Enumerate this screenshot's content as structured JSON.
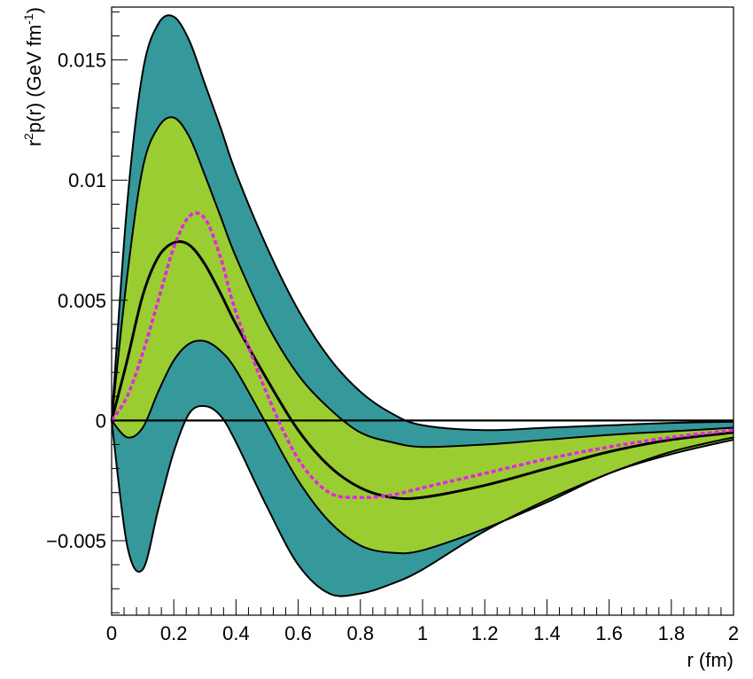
{
  "chart_data": {
    "type": "area",
    "title": "",
    "xlabel": "r (fm)",
    "ylabel": {
      "base": "r",
      "sup": "2",
      "mid": "p(r) (GeV fm",
      "sup2": "-1",
      "end": ")"
    },
    "xlim": [
      0,
      2
    ],
    "ylim": [
      -0.0081,
      0.0172
    ],
    "x_ticks": [
      {
        "value": 0,
        "label": "0"
      },
      {
        "value": 0.2,
        "label": "0.2"
      },
      {
        "value": 0.4,
        "label": "0.4"
      },
      {
        "value": 0.6,
        "label": "0.6"
      },
      {
        "value": 0.8,
        "label": "0.8"
      },
      {
        "value": 1,
        "label": "1"
      },
      {
        "value": 1.2,
        "label": "1.2"
      },
      {
        "value": 1.4,
        "label": "1.4"
      },
      {
        "value": 1.6,
        "label": "1.6"
      },
      {
        "value": 1.8,
        "label": "1.8"
      },
      {
        "value": 2,
        "label": "2"
      }
    ],
    "y_ticks": [
      {
        "value": -0.005,
        "label": "−0.005"
      },
      {
        "value": 0,
        "label": "0"
      },
      {
        "value": 0.005,
        "label": "0.005"
      },
      {
        "value": 0.01,
        "label": "0.01"
      },
      {
        "value": 0.015,
        "label": "0.015"
      }
    ],
    "colors": {
      "outer_band": "#35989a",
      "inner_band": "#9acd32",
      "central": "#000000",
      "dashed": "#e623e6",
      "zero_line": "#000000"
    },
    "x": [
      0,
      0.05,
      0.1,
      0.15,
      0.2,
      0.25,
      0.3,
      0.35,
      0.4,
      0.5,
      0.6,
      0.7,
      0.8,
      0.9,
      1.0,
      1.2,
      1.4,
      1.6,
      1.8,
      2.0
    ],
    "series": [
      {
        "role": "outer_upper",
        "values": [
          0,
          0.009,
          0.0145,
          0.0165,
          0.0168,
          0.0158,
          0.014,
          0.0122,
          0.0103,
          0.0072,
          0.0046,
          0.0026,
          0.0012,
          0.0003,
          -0.0002,
          -0.0004,
          -0.0003,
          -0.0002,
          -0.0001,
          -5e-05
        ]
      },
      {
        "role": "inner_upper",
        "values": [
          0,
          0.006,
          0.0105,
          0.0122,
          0.0126,
          0.0118,
          0.0102,
          0.0085,
          0.0068,
          0.004,
          0.0019,
          0.0005,
          -0.0005,
          -0.0009,
          -0.0011,
          -0.001,
          -0.0008,
          -0.0006,
          -0.00045,
          -0.0003
        ]
      },
      {
        "role": "central",
        "values": [
          0,
          0.0025,
          0.0052,
          0.0068,
          0.0074,
          0.0073,
          0.0065,
          0.0053,
          0.004,
          0.0017,
          -0.0004,
          -0.0019,
          -0.0028,
          -0.0032,
          -0.0032,
          -0.0027,
          -0.002,
          -0.0013,
          -0.0008,
          -0.0005
        ]
      },
      {
        "role": "inner_lower",
        "values": [
          0,
          -0.0007,
          -0.0003,
          0.0012,
          0.0025,
          0.0032,
          0.0033,
          0.0029,
          0.0021,
          -0.0002,
          -0.0025,
          -0.0042,
          -0.0052,
          -0.0055,
          -0.0054,
          -0.0045,
          -0.0034,
          -0.0022,
          -0.0014,
          -0.0008
        ]
      },
      {
        "role": "outer_lower",
        "values": [
          0,
          -0.0052,
          -0.0062,
          -0.0037,
          -0.0013,
          0.0003,
          0.0006,
          0.0002,
          -0.0009,
          -0.0036,
          -0.006,
          -0.0072,
          -0.0072,
          -0.0068,
          -0.0062,
          -0.0046,
          -0.0033,
          -0.0022,
          -0.0013,
          -0.0007
        ]
      },
      {
        "role": "dashed",
        "values": [
          0,
          0.001,
          0.0028,
          0.005,
          0.0072,
          0.0085,
          0.0084,
          0.0068,
          0.0045,
          0.0011,
          -0.0016,
          -0.003,
          -0.0032,
          -0.0031,
          -0.0028,
          -0.0022,
          -0.0016,
          -0.0011,
          -0.0007,
          -0.0004
        ]
      }
    ],
    "grid": false,
    "legend": "none"
  }
}
